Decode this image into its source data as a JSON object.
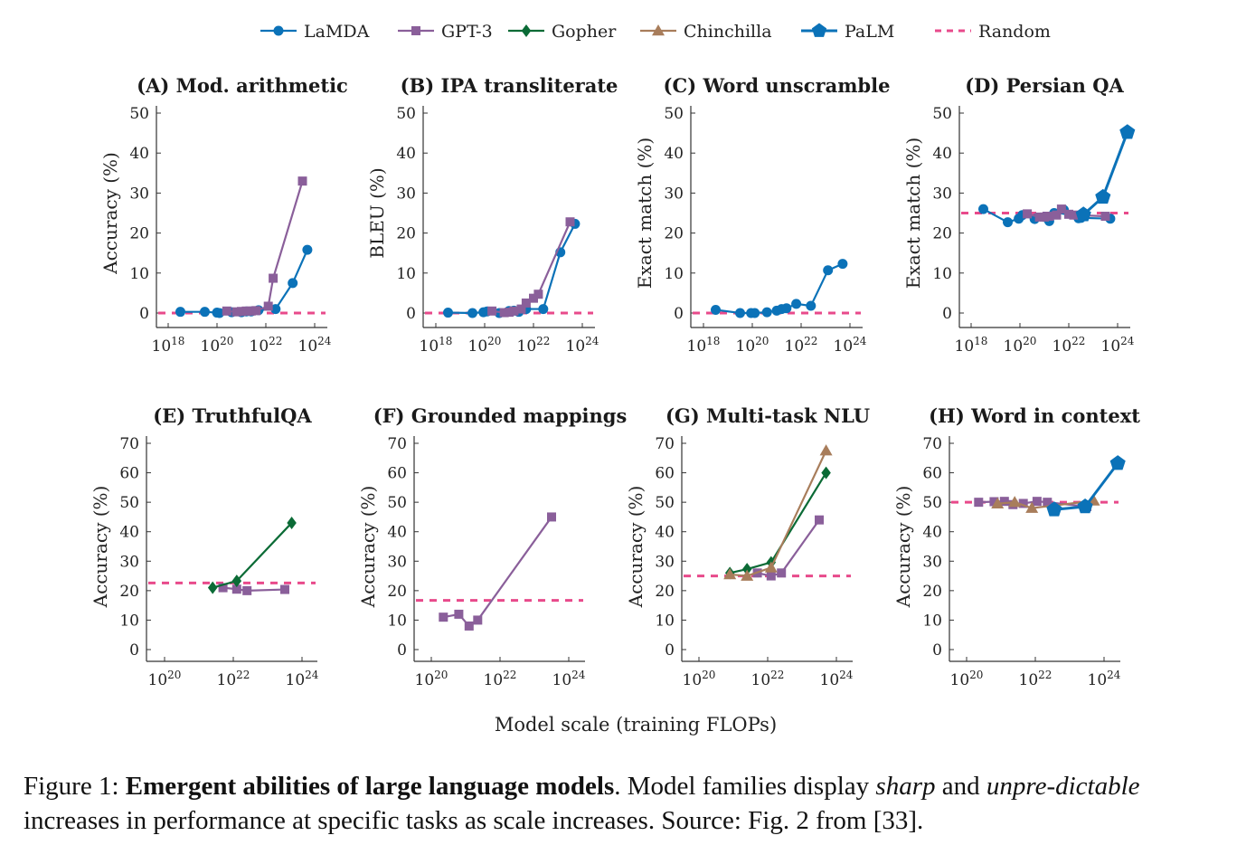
{
  "colors": {
    "LaMDA": "#0b72b8",
    "GPT-3": "#8a5f9a",
    "Gopher": "#0b6b36",
    "Chinchilla": "#a87d5b",
    "PaLM": "#0b72b8",
    "Random": "#e84a8b"
  },
  "legend": {
    "position": "top-center",
    "entries": [
      {
        "name": "LaMDA",
        "marker": "circle-icon"
      },
      {
        "name": "GPT-3",
        "marker": "square-icon"
      },
      {
        "name": "Gopher",
        "marker": "diamond-icon"
      },
      {
        "name": "Chinchilla",
        "marker": "triangle-icon"
      },
      {
        "name": "PaLM",
        "marker": "pentagon-icon"
      },
      {
        "name": "Random",
        "marker": "dashed-line-icon"
      }
    ]
  },
  "shared_xlabel": "Model scale (training FLOPs)",
  "caption": {
    "prefix": "Figure 1: ",
    "bold": "Emergent abilities of large language models",
    "mid": ". Model families display ",
    "italic1": "sharp",
    "and": " and ",
    "italic2": "unpre-dictable",
    "rest": " increases in performance at specific tasks as scale increases. Source: Fig. 2 from [33]."
  },
  "chart_data": [
    {
      "type": "line",
      "title": "(A) Mod. arithmetic",
      "ylabel": "Accuracy (%)",
      "xlabel": "",
      "xscale": "log10",
      "xlim": [
        17.5,
        24.3
      ],
      "xticks": [
        18,
        20,
        22,
        24
      ],
      "ylim": [
        -4,
        51
      ],
      "yticks": [
        0,
        10,
        20,
        30,
        40,
        50
      ],
      "random": 0,
      "series": [
        {
          "name": "LaMDA",
          "x": [
            18.5,
            19.5,
            20.0,
            20.1,
            20.6,
            21.0,
            21.2,
            21.4,
            21.7,
            22.4,
            23.1,
            23.7
          ],
          "y": [
            0.3,
            0.3,
            0.1,
            0.0,
            0.2,
            0.2,
            0.4,
            0.4,
            0.7,
            1.0,
            7.5,
            15.8
          ]
        },
        {
          "name": "GPT-3",
          "x": [
            20.4,
            20.8,
            21.0,
            21.2,
            21.4,
            21.6,
            22.1,
            22.3,
            23.5
          ],
          "y": [
            0.5,
            0.3,
            0.4,
            0.5,
            0.5,
            0.6,
            1.7,
            8.7,
            33.0
          ]
        }
      ]
    },
    {
      "type": "line",
      "title": "(B) IPA transliterate",
      "ylabel": "BLEU (%)",
      "xlabel": "",
      "xscale": "log10",
      "xlim": [
        17.5,
        24.3
      ],
      "xticks": [
        18,
        20,
        22,
        24
      ],
      "ylim": [
        -4,
        51
      ],
      "yticks": [
        0,
        10,
        20,
        30,
        40,
        50
      ],
      "random": 0,
      "series": [
        {
          "name": "LaMDA",
          "x": [
            18.5,
            19.5,
            19.95,
            20.1,
            20.6,
            21.0,
            21.2,
            21.4,
            21.7,
            22.4,
            23.1,
            23.7
          ],
          "y": [
            0.1,
            0.0,
            0.2,
            0.4,
            0.0,
            0.5,
            0.6,
            0.3,
            1.0,
            1.0,
            15.2,
            22.3
          ]
        },
        {
          "name": "GPT-3",
          "x": [
            20.3,
            20.8,
            21.0,
            21.2,
            21.5,
            21.7,
            22.0,
            22.2,
            23.5
          ],
          "y": [
            0.5,
            0.1,
            0.2,
            0.5,
            1.0,
            2.5,
            3.7,
            4.7,
            22.8
          ]
        }
      ]
    },
    {
      "type": "line",
      "title": "(C) Word unscramble",
      "ylabel": "Exact match (%)",
      "xlabel": "",
      "xscale": "log10",
      "xlim": [
        17.5,
        24.3
      ],
      "xticks": [
        18,
        20,
        22,
        24
      ],
      "ylim": [
        -4,
        51
      ],
      "yticks": [
        0,
        10,
        20,
        30,
        40,
        50
      ],
      "random": 0,
      "series": [
        {
          "name": "LaMDA",
          "x": [
            18.5,
            19.5,
            19.95,
            20.1,
            20.6,
            21.0,
            21.2,
            21.4,
            21.8,
            22.4,
            23.1,
            23.7
          ],
          "y": [
            0.8,
            0.0,
            0.0,
            0.0,
            0.2,
            0.6,
            1.0,
            1.2,
            2.3,
            1.8,
            10.7,
            12.3
          ]
        }
      ]
    },
    {
      "type": "line",
      "title": "(D) Persian QA",
      "ylabel": "Exact match (%)",
      "xlabel": "",
      "xscale": "log10",
      "xlim": [
        17.5,
        24.3
      ],
      "xticks": [
        18,
        20,
        22,
        24
      ],
      "ylim": [
        -4,
        51
      ],
      "yticks": [
        0,
        10,
        20,
        30,
        40,
        50
      ],
      "random": 25,
      "series": [
        {
          "name": "LaMDA",
          "x": [
            18.5,
            19.5,
            19.95,
            20.1,
            20.6,
            21.0,
            21.2,
            21.4,
            21.8,
            22.4,
            22.5,
            23.7
          ],
          "y": [
            26.0,
            22.7,
            23.6,
            24.5,
            23.5,
            24.0,
            23.0,
            25.0,
            25.8,
            23.7,
            23.8,
            23.6
          ]
        },
        {
          "name": "GPT-3",
          "x": [
            20.3,
            20.8,
            21.0,
            21.2,
            21.5,
            21.7,
            22.0,
            22.2,
            23.5
          ],
          "y": [
            24.8,
            24.0,
            24.0,
            24.2,
            24.5,
            26.0,
            24.7,
            24.5,
            24.2
          ]
        },
        {
          "name": "PaLM",
          "x": [
            22.6,
            23.4,
            24.4
          ],
          "y": [
            24.6,
            29.0,
            45.2
          ]
        }
      ]
    },
    {
      "type": "line",
      "title": "(E) TruthfulQA",
      "ylabel": "Accuracy (%)",
      "xlabel": "",
      "xscale": "log10",
      "xlim": [
        19.5,
        24.4
      ],
      "xticks": [
        20,
        22,
        24
      ],
      "ylim": [
        -4,
        71
      ],
      "yticks": [
        0,
        10,
        20,
        30,
        40,
        50,
        60,
        70
      ],
      "random": 22.6,
      "series": [
        {
          "name": "GPT-3",
          "x": [
            21.7,
            22.1,
            22.4,
            23.5
          ],
          "y": [
            21.0,
            20.5,
            20.0,
            20.4
          ]
        },
        {
          "name": "Gopher",
          "x": [
            21.4,
            22.1,
            23.7
          ],
          "y": [
            21.0,
            23.3,
            43.0
          ]
        }
      ]
    },
    {
      "type": "line",
      "title": "(F) Grounded mappings",
      "ylabel": "Accuracy (%)",
      "xlabel": "",
      "xscale": "log10",
      "xlim": [
        19.5,
        24.4
      ],
      "xticks": [
        20,
        22,
        24
      ],
      "ylim": [
        -4,
        71
      ],
      "yticks": [
        0,
        10,
        20,
        30,
        40,
        50,
        60,
        70
      ],
      "random": 16.7,
      "series": [
        {
          "name": "GPT-3",
          "x": [
            20.35,
            20.8,
            21.1,
            21.35,
            23.5
          ],
          "y": [
            11.0,
            12.0,
            8.0,
            10.0,
            45.0
          ]
        }
      ]
    },
    {
      "type": "line",
      "title": "(G) Multi-task NLU",
      "ylabel": "Accuracy (%)",
      "xlabel": "",
      "xscale": "log10",
      "xlim": [
        19.5,
        24.4
      ],
      "xticks": [
        20,
        22,
        24
      ],
      "ylim": [
        -4,
        71
      ],
      "yticks": [
        0,
        10,
        20,
        30,
        40,
        50,
        60,
        70
      ],
      "random": 25,
      "series": [
        {
          "name": "GPT-3",
          "x": [
            21.7,
            22.1,
            22.4,
            23.5
          ],
          "y": [
            26.0,
            25.0,
            26.0,
            44.0
          ]
        },
        {
          "name": "Gopher",
          "x": [
            20.9,
            21.4,
            22.1,
            23.7
          ],
          "y": [
            26.0,
            27.3,
            29.6,
            60.0
          ]
        },
        {
          "name": "Chinchilla",
          "x": [
            20.9,
            21.4,
            22.1,
            23.7
          ],
          "y": [
            25.5,
            25.0,
            27.8,
            67.5
          ]
        }
      ]
    },
    {
      "type": "line",
      "title": "(H) Word in context",
      "ylabel": "Accuracy (%)",
      "xlabel": "",
      "xscale": "log10",
      "xlim": [
        19.5,
        24.4
      ],
      "xticks": [
        20,
        22,
        24
      ],
      "ylim": [
        -4,
        71
      ],
      "yticks": [
        0,
        10,
        20,
        30,
        40,
        50,
        60,
        70
      ],
      "random": 50,
      "series": [
        {
          "name": "GPT-3",
          "x": [
            20.35,
            20.8,
            21.1,
            21.35,
            21.65,
            22.05,
            22.35,
            23.5
          ],
          "y": [
            50.0,
            50.2,
            50.3,
            49.2,
            49.6,
            50.3,
            50.0,
            48.5
          ]
        },
        {
          "name": "Chinchilla",
          "x": [
            20.9,
            21.4,
            21.9,
            23.7
          ],
          "y": [
            49.5,
            50.0,
            48.0,
            50.5
          ]
        },
        {
          "name": "PaLM",
          "x": [
            22.55,
            23.45,
            24.4
          ],
          "y": [
            47.5,
            48.5,
            63.2
          ]
        }
      ]
    }
  ]
}
